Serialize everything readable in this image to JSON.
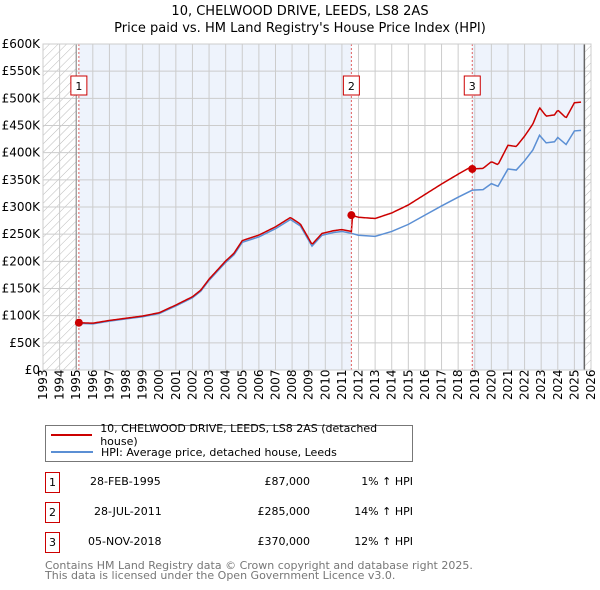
{
  "title": "10, CHELWOOD DRIVE, LEEDS, LS8 2AS",
  "subtitle": "Price paid vs. HM Land Registry's House Price Index (HPI)",
  "colors": {
    "property": "#cc0000",
    "hpi": "#5b8fd4",
    "shade": "#eef3fc"
  },
  "chart_data": {
    "type": "line",
    "xlim": [
      1993,
      2026
    ],
    "ylim": [
      0,
      600000
    ],
    "x_ticks": [
      "1993",
      "1994",
      "1995",
      "1996",
      "1997",
      "1998",
      "1999",
      "2000",
      "2001",
      "2002",
      "2003",
      "2004",
      "2005",
      "2006",
      "2007",
      "2008",
      "2009",
      "2010",
      "2011",
      "2012",
      "2013",
      "2014",
      "2015",
      "2016",
      "2017",
      "2018",
      "2019",
      "2020",
      "2021",
      "2022",
      "2023",
      "2024",
      "2025",
      "2026"
    ],
    "y_ticks": [
      "£0",
      "£50K",
      "£100K",
      "£150K",
      "£200K",
      "£250K",
      "£300K",
      "£350K",
      "£400K",
      "£450K",
      "£500K",
      "£550K",
      "£600K"
    ],
    "hpi_series": {
      "name": "HPI: Average price, detached house, Leeds",
      "x": [
        1995.0,
        1996,
        1997,
        1998,
        1999,
        2000,
        2001,
        2002,
        2002.5,
        2003,
        2004,
        2004.5,
        2005,
        2006,
        2007,
        2007.9,
        2008.5,
        2009.2,
        2009.8,
        2010.5,
        2011,
        2011.5,
        2012,
        2013,
        2014,
        2015,
        2016,
        2017,
        2018,
        2018.85,
        2019.5,
        2020,
        2020.4,
        2021,
        2021.5,
        2022,
        2022.5,
        2022.9,
        2023.3,
        2023.8,
        2024,
        2024.5,
        2025,
        2025.4
      ],
      "y": [
        86000,
        85000,
        90000,
        94000,
        98000,
        104000,
        118000,
        133000,
        145000,
        165000,
        198000,
        212000,
        235000,
        245000,
        260000,
        277000,
        265000,
        228000,
        248000,
        253000,
        255000,
        252000,
        248000,
        246000,
        255000,
        268000,
        285000,
        302000,
        318000,
        331000,
        332000,
        343000,
        338000,
        370000,
        368000,
        385000,
        405000,
        432000,
        418000,
        420000,
        428000,
        415000,
        440000,
        441000
      ]
    },
    "property_series": {
      "name": "10, CHELWOOD DRIVE, LEEDS, LS8 2AS (detached house)"
    },
    "sales": [
      {
        "n": "1",
        "x": 1995.16,
        "date": "28-FEB-1995",
        "price": 87000,
        "price_label": "£87,000",
        "hpi": "1% ↑ HPI"
      },
      {
        "n": "2",
        "x": 2011.57,
        "date": "28-JUL-2011",
        "price": 285000,
        "price_label": "£285,000",
        "hpi": "14% ↑ HPI"
      },
      {
        "n": "3",
        "x": 2018.85,
        "date": "05-NOV-2018",
        "price": 370000,
        "price_label": "£370,000",
        "hpi": "12% ↑ HPI"
      }
    ],
    "hatch_before": 1995.0,
    "hatch_after": 2025.6
  },
  "footer": [
    "Contains HM Land Registry data © Crown copyright and database right 2025.",
    "This data is licensed under the Open Government Licence v3.0."
  ]
}
